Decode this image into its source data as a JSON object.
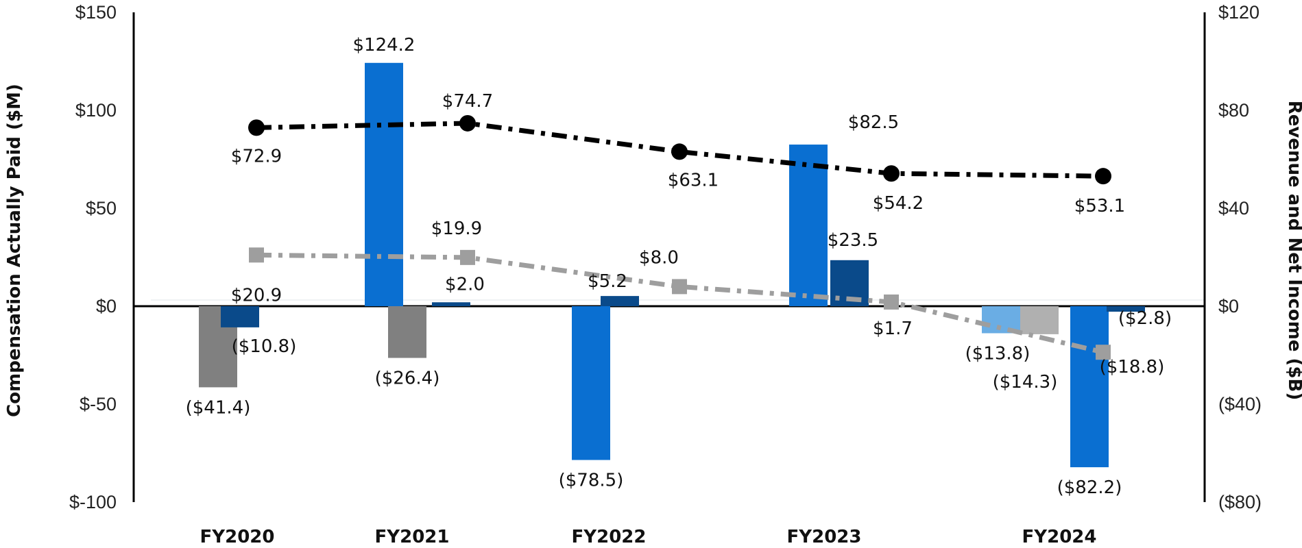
{
  "chart_data": {
    "type": "bar",
    "categories": [
      "FY2020",
      "FY2021",
      "FY2022",
      "FY2023",
      "FY2024"
    ],
    "ylabel": "Compensation Actually Paid ($M)",
    "y2label": "Revenue and Net Income ($B)",
    "ylim": [
      -100,
      150
    ],
    "y2lim": [
      -80,
      120
    ],
    "yticks": [
      "$150",
      "$100",
      "$50",
      "$0",
      "$-50",
      "$-100"
    ],
    "y2ticks": [
      "$120",
      "$80",
      "$40",
      "$0",
      "($40)",
      "($80)"
    ],
    "bar_series": [
      {
        "name": "Compensation actually paid — series A",
        "color": "#0A6FD1",
        "values": [
          null,
          124.2,
          -78.5,
          82.5,
          -82.2
        ],
        "labels": [
          "",
          "$124.2",
          "($78.5)",
          "$82.5",
          "($82.2)"
        ]
      },
      {
        "name": "Compensation actually paid — series B",
        "color": "#808080",
        "values": [
          -41.4,
          -26.4,
          null,
          null,
          null
        ],
        "labels": [
          "($41.4)",
          "($26.4)",
          "",
          "",
          ""
        ]
      },
      {
        "name": "Compensation actually paid — series C",
        "color": "#0A4A8A",
        "values": [
          -10.8,
          2.0,
          5.2,
          23.5,
          -2.8
        ],
        "labels": [
          "($10.8)",
          "$2.0",
          "$5.2",
          "$23.5",
          "($2.8)"
        ]
      },
      {
        "name": "Compensation actually paid — series D",
        "color": "#6AADE4",
        "values": [
          null,
          null,
          null,
          null,
          -13.8
        ],
        "labels": [
          "",
          "",
          "",
          "",
          "($13.8)"
        ]
      },
      {
        "name": "Compensation actually paid — series E",
        "color": "#B0B0B0",
        "values": [
          null,
          null,
          null,
          null,
          -14.3
        ],
        "labels": [
          "",
          "",
          "",
          "",
          "($14.3)"
        ]
      }
    ],
    "line_series": [
      {
        "name": "Revenue",
        "axis": "right",
        "color": "#000000",
        "marker": "circle",
        "values": [
          72.9,
          74.7,
          63.1,
          54.2,
          53.1
        ],
        "labels": [
          "$72.9",
          "$74.7",
          "$63.1",
          "$54.2",
          "$53.1"
        ]
      },
      {
        "name": "Net Income",
        "axis": "right",
        "color": "#9E9E9E",
        "marker": "square",
        "values": [
          20.9,
          19.9,
          8.0,
          1.7,
          -18.8
        ],
        "labels": [
          "$20.9",
          "$19.9",
          "$8.0",
          "$1.7",
          "($18.8)"
        ]
      }
    ]
  }
}
